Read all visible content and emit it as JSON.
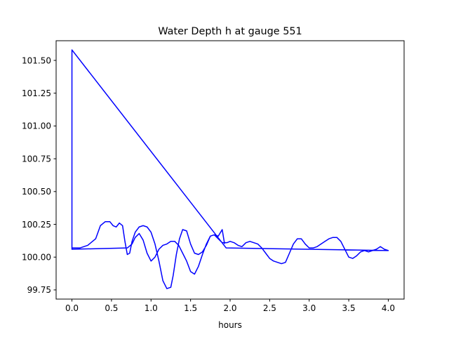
{
  "chart_data": {
    "type": "line",
    "title": "Water Depth h at gauge 551",
    "xlabel": "hours",
    "ylabel": "",
    "xlim": [
      -0.2,
      4.2
    ],
    "ylim": [
      99.68,
      101.65
    ],
    "xticks": [
      0.0,
      0.5,
      1.0,
      1.5,
      2.0,
      2.5,
      3.0,
      3.5,
      4.0
    ],
    "xtick_labels": [
      "0.0",
      "0.5",
      "1.0",
      "1.5",
      "2.0",
      "2.5",
      "3.0",
      "3.5",
      "4.0"
    ],
    "yticks": [
      99.75,
      100.0,
      100.25,
      100.5,
      100.75,
      101.0,
      101.25,
      101.5
    ],
    "ytick_labels": [
      "99.75",
      "100.00",
      "100.25",
      "100.50",
      "100.75",
      "101.00",
      "101.25",
      "101.50"
    ],
    "grid": false,
    "legend": "none",
    "series": [
      {
        "color": "#0000ff",
        "x": [
          0.0,
          0.0,
          0.0,
          0.1,
          0.2,
          0.3,
          0.36,
          0.42,
          0.48,
          0.52,
          0.56,
          0.6,
          0.64,
          0.67,
          0.7,
          0.73,
          0.76,
          0.8,
          0.85,
          0.9,
          0.95,
          1.0,
          1.05,
          1.1,
          1.15,
          1.2,
          1.25,
          1.28,
          1.32,
          1.36,
          1.4,
          1.45,
          1.5,
          1.55,
          1.6,
          1.65,
          1.7,
          1.75,
          1.8,
          1.85,
          1.9,
          1.93,
          1.96,
          2.0,
          2.05,
          2.1,
          2.15,
          2.2,
          2.25,
          2.3,
          2.35,
          2.4,
          2.45,
          2.5,
          2.55,
          2.6,
          2.65,
          2.7,
          2.75,
          2.8,
          2.85,
          2.9,
          2.95,
          3.0,
          3.05,
          3.1,
          3.15,
          3.2,
          3.25,
          3.3,
          3.35,
          3.4,
          3.45,
          3.5,
          3.55,
          3.6,
          3.65,
          3.7,
          3.75,
          3.8,
          3.85,
          3.9,
          3.95,
          4.0,
          1.95,
          0.0,
          0.0,
          0.0,
          0.7,
          0.76,
          0.8,
          0.85,
          0.9,
          0.95,
          1.0,
          1.05,
          1.1,
          1.15,
          1.2,
          1.25,
          1.3,
          1.35,
          1.4,
          1.45,
          1.5,
          1.55,
          1.6,
          1.65,
          1.7,
          1.75,
          1.8,
          1.85,
          1.9,
          1.93
        ],
        "y": [
          100.06,
          101.58,
          100.07,
          100.07,
          100.09,
          100.14,
          100.24,
          100.27,
          100.27,
          100.24,
          100.23,
          100.26,
          100.24,
          100.12,
          100.02,
          100.03,
          100.12,
          100.19,
          100.23,
          100.24,
          100.23,
          100.19,
          100.1,
          99.97,
          99.82,
          99.76,
          99.77,
          99.86,
          100.02,
          100.14,
          100.21,
          100.2,
          100.1,
          100.03,
          100.02,
          100.04,
          100.09,
          100.16,
          100.17,
          100.14,
          100.11,
          100.11,
          100.11,
          100.12,
          100.11,
          100.09,
          100.08,
          100.11,
          100.12,
          100.11,
          100.1,
          100.07,
          100.03,
          99.99,
          99.97,
          99.96,
          99.95,
          99.96,
          100.03,
          100.1,
          100.14,
          100.14,
          100.1,
          100.07,
          100.07,
          100.08,
          100.1,
          100.12,
          100.14,
          100.15,
          100.15,
          100.12,
          100.06,
          100.0,
          99.99,
          100.01,
          100.04,
          100.05,
          100.04,
          100.05,
          100.06,
          100.08,
          100.06,
          100.05,
          100.07,
          101.58,
          100.06,
          100.06,
          100.07,
          100.1,
          100.15,
          100.18,
          100.13,
          100.03,
          99.97,
          100.0,
          100.06,
          100.09,
          100.1,
          100.12,
          100.12,
          100.09,
          100.03,
          99.97,
          99.89,
          99.87,
          99.93,
          100.02,
          100.1,
          100.16,
          100.17,
          100.16,
          100.21,
          100.1
        ]
      }
    ]
  }
}
